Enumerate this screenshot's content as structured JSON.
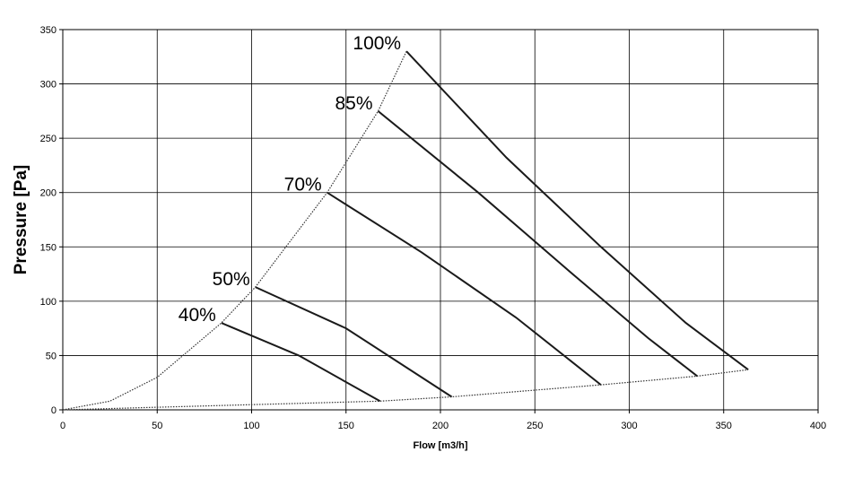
{
  "chart_data": {
    "type": "line",
    "x_label": "Flow [m3/h]",
    "y_label": "Pressure [Pa]",
    "xlim": [
      0,
      400
    ],
    "xticks": [
      0,
      50,
      100,
      150,
      200,
      250,
      300,
      350,
      400
    ],
    "ylim": [
      0,
      350
    ],
    "yticks": [
      0,
      50,
      100,
      150,
      200,
      250,
      300,
      350
    ],
    "grid": true,
    "series": [
      {
        "name": "100%",
        "color": "#1a1a1a",
        "x": [
          182,
          235,
          285,
          330,
          363
        ],
        "values": [
          330,
          232,
          150,
          80,
          37
        ]
      },
      {
        "name": "85%",
        "color": "#1a1a1a",
        "x": [
          167,
          220,
          270,
          310,
          336
        ],
        "values": [
          275,
          200,
          125,
          66,
          31
        ]
      },
      {
        "name": "70%",
        "color": "#1a1a1a",
        "x": [
          140,
          190,
          240,
          285
        ],
        "values": [
          200,
          145,
          85,
          23
        ]
      },
      {
        "name": "50%",
        "color": "#1a1a1a",
        "x": [
          102,
          150,
          206
        ],
        "values": [
          113,
          75,
          12
        ]
      },
      {
        "name": "40%",
        "color": "#1a1a1a",
        "x": [
          84,
          125,
          168
        ],
        "values": [
          80,
          50,
          8
        ]
      },
      {
        "color": "#333333",
        "line_style": "dotted",
        "x": [
          0,
          25,
          50,
          84,
          102,
          140,
          167,
          182
        ],
        "values": [
          0,
          8,
          30,
          80,
          113,
          200,
          275,
          330
        ]
      },
      {
        "color": "#333333",
        "line_style": "dotted",
        "x": [
          0,
          168,
          206,
          285,
          336,
          363
        ],
        "values": [
          0,
          8,
          12,
          23,
          31,
          37
        ]
      }
    ]
  }
}
